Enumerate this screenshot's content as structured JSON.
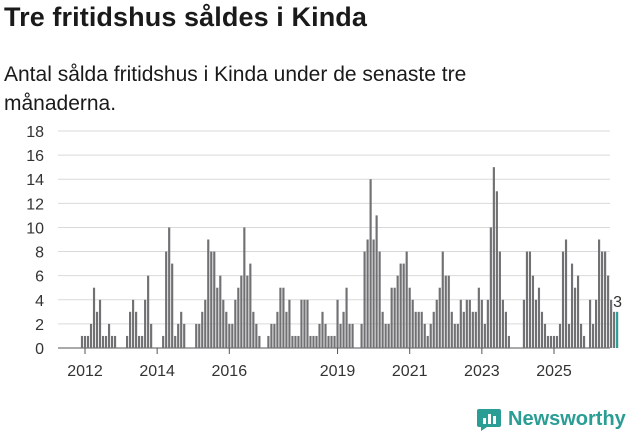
{
  "title": "Tre fritidshus såldes i Kinda",
  "subtitle": "Antal sålda fritidshus i Kinda under de senaste tre månaderna.",
  "brand": {
    "name": "Newsworthy",
    "color": "#2a9d94"
  },
  "chart_data": {
    "type": "bar",
    "title": "Tre fritidshus såldes i Kinda",
    "ylabel": "",
    "xlabel": "",
    "ylim": [
      0,
      18
    ],
    "yticks": [
      "0",
      "2",
      "4",
      "6",
      "8",
      "10",
      "12",
      "14",
      "16",
      "18"
    ],
    "xtick_labels": [
      "2012",
      "2014",
      "2016",
      "2019",
      "2021",
      "2023",
      "2025"
    ],
    "bar_color": "#717174",
    "highlight_color": "#2a9d94",
    "last_value_label": "3",
    "start": "2011-12",
    "values": [
      1,
      1,
      1,
      2,
      5,
      3,
      4,
      1,
      1,
      2,
      1,
      1,
      0,
      0,
      0,
      1,
      3,
      4,
      3,
      1,
      1,
      4,
      6,
      2,
      0,
      0,
      0,
      1,
      8,
      10,
      7,
      1,
      2,
      3,
      2,
      0,
      0,
      0,
      2,
      2,
      3,
      4,
      9,
      8,
      8,
      5,
      6,
      4,
      3,
      2,
      2,
      4,
      5,
      6,
      10,
      6,
      7,
      3,
      2,
      1,
      0,
      0,
      1,
      2,
      2,
      3,
      5,
      5,
      3,
      4,
      1,
      1,
      1,
      4,
      4,
      4,
      1,
      1,
      1,
      2,
      3,
      2,
      1,
      1,
      1,
      4,
      2,
      3,
      5,
      2,
      2,
      0,
      0,
      2,
      8,
      9,
      14,
      9,
      11,
      8,
      3,
      2,
      2,
      5,
      5,
      6,
      7,
      7,
      8,
      5,
      4,
      3,
      3,
      3,
      2,
      1,
      2,
      3,
      4,
      5,
      8,
      6,
      6,
      3,
      2,
      2,
      4,
      3,
      4,
      4,
      3,
      3,
      5,
      4,
      2,
      4,
      10,
      15,
      13,
      8,
      4,
      3,
      1,
      0,
      0,
      0,
      0,
      4,
      8,
      8,
      6,
      4,
      5,
      3,
      2,
      1,
      1,
      1,
      1,
      2,
      8,
      9,
      2,
      7,
      5,
      6,
      2,
      1,
      0,
      4,
      2,
      4,
      9,
      8,
      8,
      6,
      4,
      3,
      3
    ]
  }
}
